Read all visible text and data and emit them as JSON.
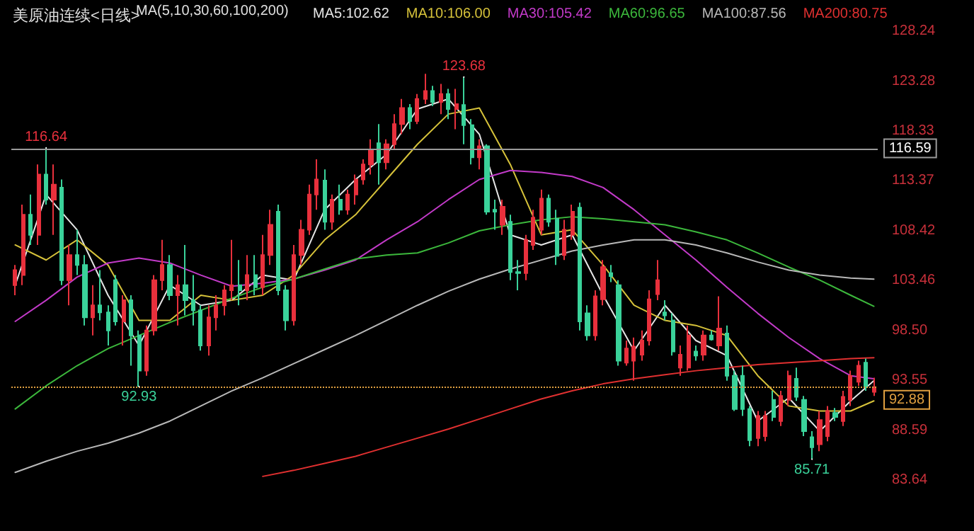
{
  "chart_data": {
    "type": "candlestick",
    "title": "美原油连续<日线>",
    "legend_title": "MA(5,10,30,60,100,200)",
    "categories": [
      null,
      null,
      null,
      null,
      null,
      null,
      null,
      null,
      null,
      null,
      null,
      null,
      null,
      null,
      null,
      null,
      null,
      null,
      null,
      null,
      null,
      null,
      null,
      null,
      null,
      null,
      null,
      null,
      null,
      null,
      null,
      null,
      null,
      null,
      null,
      null,
      null,
      null,
      null,
      null,
      null,
      null,
      null,
      null,
      null,
      null,
      null,
      null,
      null,
      null,
      null,
      null,
      null,
      null,
      null,
      null,
      null,
      null,
      null,
      null,
      null,
      null,
      null,
      null,
      null,
      null,
      null,
      null,
      null,
      null,
      null,
      null,
      null,
      null,
      null,
      null,
      null,
      null,
      null,
      null,
      null,
      null,
      null,
      null,
      null,
      null,
      null,
      null,
      null,
      null,
      null,
      null,
      null,
      null,
      null,
      null,
      null,
      null,
      null,
      null,
      null,
      null,
      null,
      null,
      null,
      null,
      null,
      null,
      null,
      null,
      null,
      null
    ],
    "ohlc": [
      [
        103,
        105,
        102,
        104.5
      ],
      [
        104,
        111,
        103,
        110
      ],
      [
        110,
        112,
        107,
        108
      ],
      [
        108,
        115,
        107,
        114
      ],
      [
        114,
        116.64,
        111,
        111.5
      ],
      [
        111.5,
        115,
        108,
        113
      ],
      [
        112.7,
        113.5,
        103,
        103.5
      ],
      [
        103.5,
        107,
        101,
        106
      ],
      [
        106,
        108.5,
        104,
        105
      ],
      [
        105,
        106,
        99,
        99.8
      ],
      [
        99.8,
        103,
        98,
        101
      ],
      [
        101,
        104.5,
        99.5,
        100.3
      ],
      [
        100.3,
        101,
        97,
        98.5
      ],
      [
        103.5,
        104,
        99,
        99.4
      ],
      [
        99.4,
        102,
        97,
        101.5
      ],
      [
        101.5,
        102,
        95,
        98
      ],
      [
        98,
        98.5,
        92.93,
        94.5
      ],
      [
        94.5,
        99,
        94,
        98.5
      ],
      [
        98.5,
        104,
        98,
        103.5
      ],
      [
        103.5,
        107.5,
        102.5,
        105
      ],
      [
        105,
        106,
        101.5,
        102
      ],
      [
        102,
        104,
        99,
        103
      ],
      [
        103,
        107,
        100,
        101.5
      ],
      [
        101.5,
        104,
        99,
        100.5
      ],
      [
        100.5,
        101,
        96.5,
        97
      ],
      [
        97,
        101,
        96,
        99.8
      ],
      [
        99.8,
        102,
        98.5,
        101
      ],
      [
        101,
        103,
        100,
        102.5
      ],
      [
        102.5,
        107.5,
        101.5,
        103
      ],
      [
        103,
        105.5,
        101,
        102.5
      ],
      [
        102.5,
        106,
        101.5,
        104
      ],
      [
        104,
        106,
        102,
        102.8
      ],
      [
        102.8,
        108,
        102,
        106
      ],
      [
        106,
        110.5,
        105,
        109
      ],
      [
        110.3,
        111,
        102,
        102.5
      ],
      [
        102.5,
        103,
        98.5,
        99.5
      ],
      [
        99.5,
        107,
        99,
        106
      ],
      [
        106,
        109.5,
        105,
        108.5
      ],
      [
        108.5,
        113,
        108,
        112
      ],
      [
        112,
        115.5,
        110.5,
        113.5
      ],
      [
        113.4,
        114.5,
        108.5,
        109.3
      ],
      [
        109.3,
        112,
        108.5,
        111.5
      ],
      [
        111.5,
        113,
        110,
        110.5
      ],
      [
        110.5,
        112.5,
        110,
        112
      ],
      [
        112,
        114,
        111,
        113.5
      ],
      [
        113.5,
        115.5,
        113,
        115
      ],
      [
        115,
        117.5,
        114,
        116.5
      ],
      [
        117.1,
        119,
        113,
        115.2
      ],
      [
        115.2,
        117.5,
        114.5,
        117
      ],
      [
        117,
        120,
        116.5,
        119
      ],
      [
        119,
        121.5,
        118,
        120.6
      ],
      [
        120.6,
        121,
        118.5,
        119.3
      ],
      [
        119.3,
        122,
        119,
        121.5
      ],
      [
        121.5,
        124,
        121,
        122.3
      ],
      [
        122.3,
        122.8,
        120.8,
        121.2
      ],
      [
        121.2,
        123,
        120,
        122
      ],
      [
        122,
        122.5,
        119.5,
        120.5
      ],
      [
        120.5,
        122.5,
        118.5,
        121
      ],
      [
        120.9,
        123.68,
        117,
        118.9
      ],
      [
        118.9,
        119.5,
        115,
        115.7
      ],
      [
        115.7,
        117.5,
        114.5,
        116.8
      ],
      [
        116.8,
        117,
        110,
        110.3
      ],
      [
        110.5,
        111.5,
        108.5,
        110.3
      ],
      [
        109,
        111.5,
        108,
        110.8
      ],
      [
        109.3,
        110,
        103.5,
        104.3
      ],
      [
        104.3,
        105.5,
        102.5,
        104.2
      ],
      [
        104.2,
        108,
        103.5,
        107.5
      ],
      [
        107,
        110.5,
        106.5,
        109.7
      ],
      [
        108.5,
        112.5,
        108,
        111.6
      ],
      [
        111.6,
        112,
        108.8,
        109.3
      ],
      [
        109.6,
        110.5,
        105,
        105.9
      ],
      [
        106,
        109.5,
        105.5,
        108.5
      ],
      [
        108,
        111,
        107.5,
        110.3
      ],
      [
        110.7,
        111.2,
        98.5,
        99.4
      ],
      [
        100.2,
        101,
        97.5,
        98
      ],
      [
        98,
        102.5,
        97.5,
        101.9
      ],
      [
        101.6,
        105.5,
        101,
        104.8
      ],
      [
        104.2,
        105,
        103.3,
        103.9
      ],
      [
        103,
        103.5,
        95,
        95.5
      ],
      [
        95.3,
        97.5,
        95,
        96.7
      ],
      [
        95.5,
        97.8,
        93.5,
        96.9
      ],
      [
        96.1,
        98.5,
        95.5,
        97.5
      ],
      [
        97.5,
        102.5,
        97,
        101.6
      ],
      [
        102.1,
        105.5,
        101.5,
        103.5
      ],
      [
        100.3,
        101.5,
        99.5,
        100
      ],
      [
        99.5,
        100.2,
        96,
        96.4
      ],
      [
        94.8,
        97,
        94,
        96.1
      ],
      [
        94.8,
        99,
        94.5,
        98
      ],
      [
        96.4,
        97,
        95.5,
        96
      ],
      [
        96.1,
        98.5,
        95.5,
        98
      ],
      [
        98,
        98.5,
        97.5,
        97.6
      ],
      [
        97,
        101.9,
        96.5,
        98.7
      ],
      [
        98.2,
        99,
        93.5,
        94
      ],
      [
        94,
        94.5,
        90.5,
        90.7
      ],
      [
        94,
        95,
        90,
        90.7
      ],
      [
        90.7,
        91,
        87,
        87.6
      ],
      [
        87.8,
        90.5,
        87,
        90
      ],
      [
        88,
        90.5,
        87.5,
        90
      ],
      [
        91.6,
        92.5,
        89.5,
        89.9
      ],
      [
        89.5,
        92.5,
        89,
        92
      ],
      [
        91.6,
        94.5,
        91,
        94
      ],
      [
        93.7,
        94.8,
        91.5,
        91.9
      ],
      [
        91.6,
        92,
        88,
        88.5
      ],
      [
        87.9,
        88.5,
        85.71,
        86.9
      ],
      [
        87.2,
        90.5,
        86.5,
        89.6
      ],
      [
        88,
        91,
        87.5,
        90.5
      ],
      [
        90.3,
        90.8,
        89.5,
        89.9
      ],
      [
        89.5,
        92.5,
        89,
        91.9
      ],
      [
        91.6,
        94.5,
        91,
        94
      ],
      [
        93.4,
        95.5,
        93,
        95
      ],
      [
        95.3,
        95.7,
        92.5,
        93
      ],
      [
        92.4,
        93.8,
        92,
        92.88
      ]
    ],
    "colors": [
      "#e8303c",
      "#e8303c",
      "#3ad29a",
      "#e8303c",
      "#3ad29a",
      "#e8303c",
      "#3ad29a",
      "#e8303c",
      "#3ad29a",
      "#3ad29a",
      "#e8303c",
      "#3ad29a",
      "#3ad29a",
      "#3ad29a",
      "#e8303c",
      "#3ad29a",
      "#3ad29a",
      "#e8303c",
      "#e8303c",
      "#e8303c",
      "#3ad29a",
      "#e8303c",
      "#3ad29a",
      "#3ad29a",
      "#3ad29a",
      "#e8303c",
      "#e8303c",
      "#e8303c",
      "#e8303c",
      "#3ad29a",
      "#e8303c",
      "#3ad29a",
      "#e8303c",
      "#e8303c",
      "#3ad29a",
      "#3ad29a",
      "#e8303c",
      "#e8303c",
      "#e8303c",
      "#e8303c",
      "#3ad29a",
      "#e8303c",
      "#3ad29a",
      "#e8303c",
      "#e8303c",
      "#e8303c",
      "#e8303c",
      "#3ad29a",
      "#e8303c",
      "#e8303c",
      "#e8303c",
      "#3ad29a",
      "#e8303c",
      "#e8303c",
      "#3ad29a",
      "#e8303c",
      "#3ad29a",
      "#e8303c",
      "#3ad29a",
      "#3ad29a",
      "#e8303c",
      "#3ad29a",
      "#3ad29a",
      "#e8303c",
      "#3ad29a",
      "#3ad29a",
      "#e8303c",
      "#e8303c",
      "#e8303c",
      "#3ad29a",
      "#3ad29a",
      "#e8303c",
      "#e8303c",
      "#3ad29a",
      "#3ad29a",
      "#e8303c",
      "#e8303c",
      "#3ad29a",
      "#3ad29a",
      "#e8303c",
      "#e8303c",
      "#e8303c",
      "#e8303c",
      "#e8303c",
      "#3ad29a",
      "#3ad29a",
      "#e8303c",
      "#e8303c",
      "#3ad29a",
      "#e8303c",
      "#3ad29a",
      "#e8303c",
      "#3ad29a",
      "#3ad29a",
      "#3ad29a",
      "#3ad29a",
      "#e8303c",
      "#e8303c",
      "#3ad29a",
      "#e8303c",
      "#e8303c",
      "#3ad29a",
      "#3ad29a",
      "#3ad29a",
      "#e8303c",
      "#e8303c",
      "#3ad29a",
      "#e8303c",
      "#e8303c",
      "#e8303c",
      "#3ad29a",
      "#e8303c"
    ],
    "series": [
      {
        "type": "line",
        "name": "MA5:102.62",
        "color": "#e6e6e6",
        "values": [
          103,
          null,
          null,
          null,
          112,
          null,
          null,
          null,
          108.5,
          null,
          null,
          null,
          102,
          null,
          null,
          null,
          97,
          null,
          null,
          null,
          103,
          null,
          null,
          null,
          101,
          null,
          null,
          null,
          101.5,
          null,
          null,
          null,
          104,
          null,
          null,
          null,
          103.5,
          null,
          null,
          null,
          110.5,
          null,
          null,
          null,
          113.5,
          null,
          null,
          null,
          116,
          null,
          null,
          null,
          120.5,
          null,
          null,
          null,
          121.5,
          null,
          null,
          null,
          118,
          null,
          null,
          null,
          108,
          null,
          null,
          null,
          107,
          null,
          null,
          null,
          108,
          null,
          null,
          null,
          102,
          null,
          null,
          null,
          96.5,
          null,
          null,
          null,
          101,
          null,
          null,
          null,
          97.5,
          null,
          null,
          null,
          96,
          null,
          null,
          null,
          89.5,
          null,
          null,
          null,
          91.8,
          null,
          null,
          null,
          88.5,
          null,
          null,
          null,
          91.5,
          null,
          null,
          93.5
        ]
      },
      {
        "type": "line",
        "name": "MA10:106.00",
        "color": "#d6c23a",
        "values": [
          107,
          null,
          null,
          null,
          105.5,
          null,
          null,
          null,
          107.5,
          null,
          null,
          null,
          105,
          null,
          null,
          null,
          99.5,
          null,
          null,
          null,
          99.5,
          null,
          null,
          null,
          102,
          null,
          null,
          null,
          101.5,
          null,
          null,
          null,
          102,
          null,
          null,
          null,
          104,
          null,
          null,
          null,
          107.5,
          null,
          null,
          null,
          110,
          null,
          null,
          null,
          113.5,
          null,
          null,
          null,
          117,
          null,
          null,
          null,
          120,
          null,
          null,
          null,
          120.6,
          null,
          null,
          null,
          115,
          null,
          null,
          null,
          108,
          null,
          null,
          null,
          108.5,
          null,
          null,
          null,
          105,
          null,
          null,
          null,
          101,
          null,
          null,
          null,
          99.5,
          null,
          null,
          null,
          99,
          null,
          null,
          null,
          98,
          null,
          null,
          null,
          94,
          null,
          null,
          null,
          91,
          null,
          null,
          null,
          90.5,
          null,
          null,
          null,
          90.5,
          null,
          null,
          91.5
        ]
      },
      {
        "type": "line",
        "name": "MA30:105.42",
        "color": "#c23ac8",
        "values": [
          99.4,
          null,
          null,
          null,
          101.5,
          null,
          null,
          null,
          103.8,
          null,
          null,
          null,
          105.2,
          null,
          null,
          null,
          105.7,
          null,
          null,
          null,
          105.2,
          null,
          null,
          null,
          104,
          null,
          null,
          null,
          102.9,
          null,
          null,
          null,
          103.2,
          null,
          null,
          null,
          103.6,
          null,
          null,
          null,
          104.5,
          null,
          null,
          null,
          105.5,
          null,
          null,
          null,
          107.5,
          null,
          null,
          null,
          109.3,
          null,
          null,
          null,
          111.5,
          null,
          null,
          null,
          113.5,
          null,
          null,
          null,
          114.4,
          null,
          null,
          null,
          114.2,
          null,
          null,
          null,
          113.8,
          null,
          null,
          null,
          112.7,
          null,
          null,
          null,
          110.5,
          null,
          null,
          null,
          108,
          null,
          null,
          null,
          105.5,
          null,
          null,
          null,
          102.8,
          null,
          null,
          null,
          100.2,
          null,
          null,
          null,
          97.8,
          null,
          null,
          null,
          95.7,
          null,
          null,
          null,
          94,
          null,
          null,
          93.7
        ]
      },
      {
        "type": "line",
        "name": "MA60:96.65",
        "color": "#3cb83c",
        "values": [
          90.7,
          null,
          null,
          null,
          93,
          null,
          null,
          null,
          95,
          null,
          null,
          null,
          96.7,
          null,
          null,
          null,
          98,
          null,
          null,
          null,
          99.3,
          null,
          null,
          null,
          100.5,
          null,
          null,
          null,
          101.7,
          null,
          null,
          null,
          102.8,
          null,
          null,
          null,
          103.6,
          null,
          null,
          null,
          104.6,
          null,
          null,
          null,
          105.6,
          null,
          null,
          null,
          106,
          null,
          null,
          null,
          106.2,
          null,
          null,
          null,
          107.2,
          null,
          null,
          null,
          108.4,
          null,
          null,
          null,
          109,
          null,
          null,
          null,
          109.5,
          null,
          null,
          null,
          109.8,
          null,
          null,
          null,
          109.6,
          null,
          null,
          null,
          109.3,
          null,
          null,
          null,
          109,
          null,
          null,
          null,
          108.3,
          null,
          null,
          null,
          107.5,
          null,
          null,
          null,
          106.2,
          null,
          null,
          null,
          104.8,
          null,
          null,
          null,
          103.5,
          null,
          null,
          null,
          102,
          null,
          null,
          100.9
        ]
      },
      {
        "type": "line",
        "name": "MA100:87.56",
        "color": "#b8b8b8",
        "values": [
          84.4,
          null,
          null,
          null,
          85.5,
          null,
          null,
          null,
          86.5,
          null,
          null,
          null,
          87.3,
          null,
          null,
          null,
          88.3,
          null,
          null,
          null,
          89.5,
          null,
          null,
          null,
          91,
          null,
          null,
          null,
          92.5,
          null,
          null,
          null,
          93.8,
          null,
          null,
          null,
          95.2,
          null,
          null,
          null,
          96.6,
          null,
          null,
          null,
          98,
          null,
          null,
          null,
          99.5,
          null,
          null,
          null,
          101,
          null,
          null,
          null,
          102.4,
          null,
          null,
          null,
          103.6,
          null,
          null,
          null,
          104.6,
          null,
          null,
          null,
          105.5,
          null,
          null,
          null,
          106.4,
          null,
          null,
          null,
          107,
          null,
          null,
          null,
          107.5,
          null,
          null,
          null,
          107.5,
          null,
          null,
          null,
          107,
          null,
          null,
          null,
          106.2,
          null,
          null,
          null,
          105.3,
          null,
          null,
          null,
          104.5,
          null,
          null,
          null,
          104,
          null,
          null,
          null,
          103.7,
          null,
          null,
          103.6
        ]
      },
      {
        "type": "line",
        "name": "MA200:80.75",
        "color": "#e03030",
        "values": [
          null,
          null,
          null,
          null,
          null,
          null,
          null,
          null,
          null,
          null,
          null,
          null,
          null,
          null,
          null,
          null,
          null,
          null,
          null,
          null,
          null,
          null,
          null,
          null,
          null,
          null,
          null,
          null,
          null,
          null,
          null,
          null,
          84.0,
          null,
          null,
          null,
          84.6,
          null,
          null,
          null,
          85.3,
          null,
          null,
          null,
          86.0,
          null,
          null,
          null,
          86.9,
          null,
          null,
          null,
          87.8,
          null,
          null,
          null,
          88.7,
          null,
          null,
          null,
          89.7,
          null,
          null,
          null,
          90.7,
          null,
          null,
          null,
          91.7,
          null,
          null,
          null,
          92.5,
          null,
          null,
          null,
          93.2,
          null,
          null,
          null,
          93.7,
          null,
          null,
          null,
          94.1,
          null,
          null,
          null,
          94.5,
          null,
          null,
          null,
          94.8,
          null,
          null,
          null,
          95.1,
          null,
          null,
          null,
          95.3,
          null,
          null,
          null,
          95.5,
          null,
          null,
          null,
          95.7,
          null,
          null,
          95.8
        ]
      }
    ],
    "ylim": [
      83.64,
      128.24
    ],
    "yticks": [
      83.64,
      88.59,
      93.55,
      {
        "value": 98.5,
        "label": "98.50"
      },
      103.46,
      108.42,
      113.37,
      118.33,
      123.28,
      128.24
    ],
    "ref_lines": [
      {
        "axis": "y",
        "value": 116.59,
        "label": "116.59",
        "color": "#9a9a9a",
        "line_style": "solid"
      },
      {
        "axis": "y",
        "value": 92.88,
        "label": "92.88",
        "color": "#e0a040",
        "line_style": "dotted"
      }
    ],
    "annotations": [
      {
        "text": "116.64",
        "y": 116.64
      },
      {
        "text": "123.68",
        "y": 123.68
      },
      {
        "text": "92.93",
        "y": 92.93
      },
      {
        "text": "85.71",
        "y": 85.71
      }
    ],
    "legend": "top",
    "tick_labels": "y",
    "grid": false,
    "line_style": "solid"
  }
}
